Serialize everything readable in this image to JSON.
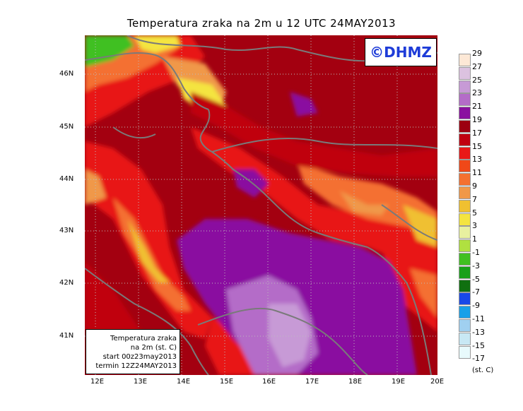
{
  "title": "Temperatura zraka na 2m u 12 UTC 24MAY2013",
  "logo": "©DHMZ",
  "info": {
    "line1": "Temperatura zraka",
    "line2": "na 2m (st. C)",
    "line3": "start 00z23may2013",
    "line4": "termin 12Z24MAY2013"
  },
  "lat_labels": [
    "46N",
    "45N",
    "44N",
    "43N",
    "42N",
    "41N"
  ],
  "lon_labels": [
    "12E",
    "13E",
    "14E",
    "15E",
    "16E",
    "17E",
    "18E",
    "19E",
    "20E"
  ],
  "legend": {
    "labels": [
      "29",
      "27",
      "25",
      "23",
      "21",
      "19",
      "17",
      "15",
      "13",
      "11",
      "9",
      "7",
      "5",
      "3",
      "1",
      "-1",
      "-3",
      "-5",
      "-7",
      "-9",
      "-11",
      "-13",
      "-15",
      "-17"
    ],
    "colors": [
      "#fde8d6",
      "#dcc2e0",
      "#c79ad6",
      "#b46cc8",
      "#8a10a0",
      "#9c0010",
      "#c00010",
      "#e81818",
      "#f04818",
      "#f47030",
      "#f09848",
      "#f0c030",
      "#f4e440",
      "#e8f0a0",
      "#b0e040",
      "#40c020",
      "#18a018",
      "#107010",
      "#1848e8",
      "#18a0e8",
      "#a0d0f0",
      "#c8e8f4",
      "#e8fafc"
    ],
    "unit": "(st. C)"
  }
}
